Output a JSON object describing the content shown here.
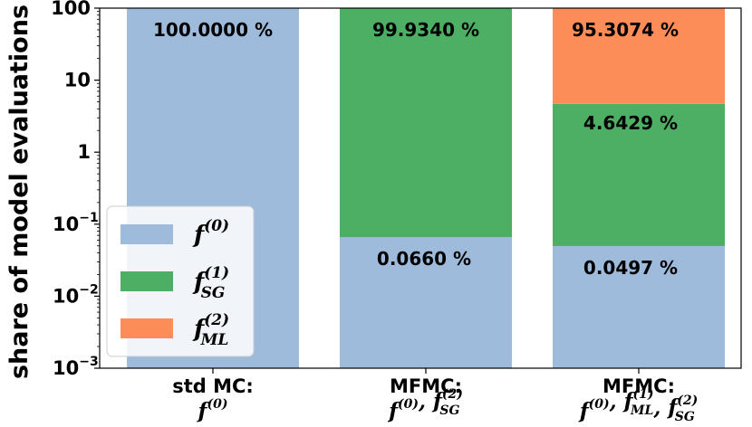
{
  "chart_data": {
    "type": "bar",
    "stacked": true,
    "yscale": "log",
    "ylim": [
      0.001,
      100
    ],
    "ylabel": "share of model evaluations",
    "yticks": [
      {
        "value": 0.001,
        "base": "10",
        "exp": "−3"
      },
      {
        "value": 0.01,
        "base": "10",
        "exp": "−2"
      },
      {
        "value": 0.1,
        "base": "10",
        "exp": "−1"
      },
      {
        "value": 1,
        "base": "1",
        "exp": ""
      },
      {
        "value": 10,
        "base": "10",
        "exp": ""
      },
      {
        "value": 100,
        "base": "100",
        "exp": ""
      }
    ],
    "categories": [
      {
        "line1": "std MC:",
        "line2": "f(0)"
      },
      {
        "line1": "MFMC:",
        "line2": "f(0), fSG(2)"
      },
      {
        "line1": "MFMC:",
        "line2": "f(0), fML(1), fSG(2)"
      }
    ],
    "series": [
      {
        "name": "f(0)",
        "color": "#9ebbdb",
        "values": [
          100.0,
          0.066,
          0.0497
        ],
        "labels": [
          "100.0000 %",
          "0.0660 %",
          "0.0497 %"
        ]
      },
      {
        "name": "fSG(1)",
        "color": "#4caf63",
        "values": [
          0,
          99.934,
          4.6429
        ],
        "labels": [
          "",
          "99.9340 %",
          "4.6429 %"
        ]
      },
      {
        "name": "fML(2)",
        "color": "#fc8d59",
        "values": [
          0,
          0,
          95.3074
        ],
        "labels": [
          "",
          "",
          "95.3074 %"
        ]
      }
    ],
    "legend": {
      "position": "lower-left",
      "entries": [
        {
          "base": "f",
          "sup": "(0)",
          "sub": ""
        },
        {
          "base": "f",
          "sup": "(1)",
          "sub": "SG"
        },
        {
          "base": "f",
          "sup": "(2)",
          "sub": "ML"
        }
      ]
    }
  }
}
